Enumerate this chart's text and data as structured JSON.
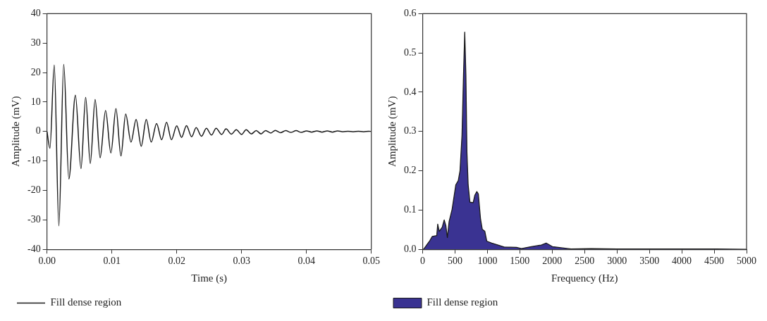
{
  "chart_data": [
    {
      "type": "line",
      "xlabel": "Time (s)",
      "ylabel": "Amplitude (mV)",
      "xlim": [
        0,
        0.05
      ],
      "xticks": [
        {
          "value": 0,
          "label": "0.00"
        },
        {
          "value": 0.01,
          "label": "0.01"
        },
        {
          "value": 0.02,
          "label": "0.02"
        },
        {
          "value": 0.03,
          "label": "0.03"
        },
        {
          "value": 0.04,
          "label": "0.04"
        },
        {
          "value": 0.05,
          "label": "0.05"
        }
      ],
      "ylim": [
        -40,
        40
      ],
      "yticks": [
        -40,
        -30,
        -20,
        -10,
        0,
        10,
        20,
        30,
        40
      ],
      "grid": false,
      "legend": "bottom left",
      "series": [
        {
          "name": "Fill dense region",
          "color": "#1a1a1a",
          "x": [
            0,
            0.00045,
            0.00112,
            0.00183,
            0.00258,
            0.00337,
            0.00438,
            0.00524,
            0.00596,
            0.00667,
            0.00742,
            0.00819,
            0.00903,
            0.00985,
            0.01063,
            0.0114,
            0.01213,
            0.01295,
            0.01374,
            0.01453,
            0.0153,
            0.01607,
            0.01689,
            0.01768,
            0.01843,
            0.01918,
            0.02,
            0.02075,
            0.0215,
            0.0223,
            0.023,
            0.02382,
            0.02457,
            0.02536,
            0.02607,
            0.02693,
            0.0276,
            0.02843,
            0.02918,
            0.03,
            0.0307,
            0.0315,
            0.03225,
            0.033,
            0.0337,
            0.0345,
            0.0352,
            0.036,
            0.0368,
            0.0376,
            0.0384,
            0.0392,
            0.04,
            0.0408,
            0.0416,
            0.0424,
            0.0432,
            0.044,
            0.0448,
            0.0456,
            0.0464,
            0.0472,
            0.048,
            0.0488,
            0.0496,
            0.05
          ],
          "values": [
            0,
            -5.7,
            22.6,
            -32,
            22.8,
            -16.1,
            12.3,
            -12.6,
            11.6,
            -10.9,
            10.9,
            -8.9,
            7.1,
            -7.3,
            7.8,
            -8.3,
            5.9,
            -3.6,
            4.1,
            -5.0,
            4.1,
            -3.6,
            2.7,
            -2.8,
            3.1,
            -2.8,
            1.9,
            -2.0,
            2.0,
            -1.8,
            1.3,
            -1.6,
            1.1,
            -1.2,
            1.1,
            -1.0,
            0.9,
            -0.9,
            0.6,
            -1.0,
            0.6,
            -0.8,
            0.3,
            -0.8,
            0.3,
            -0.5,
            0.4,
            -0.4,
            0.3,
            -0.3,
            0.3,
            -0.3,
            0.2,
            -0.2,
            0.2,
            -0.2,
            0.2,
            -0.2,
            0.2,
            -0.1,
            0.1,
            -0.1,
            0.1,
            -0.1,
            0.1,
            0
          ]
        }
      ]
    },
    {
      "type": "area",
      "xlabel": "Frequency (Hz)",
      "ylabel": "Amplitude (mV)",
      "xlim": [
        0,
        5000
      ],
      "xticks": [
        0,
        500,
        1000,
        1500,
        2000,
        2500,
        3000,
        3500,
        4000,
        4500,
        5000
      ],
      "ylim": [
        0,
        0.6
      ],
      "yticks": [
        {
          "value": 0,
          "label": "0.0"
        },
        {
          "value": 0.1,
          "label": "0.1"
        },
        {
          "value": 0.2,
          "label": "0.2"
        },
        {
          "value": 0.3,
          "label": "0.3"
        },
        {
          "value": 0.4,
          "label": "0.4"
        },
        {
          "value": 0.5,
          "label": "0.5"
        },
        {
          "value": 0.6,
          "label": "0.6"
        }
      ],
      "grid": false,
      "legend": "bottom left",
      "series": [
        {
          "name": "Fill dense region",
          "color": "#3a3392",
          "x": [
            0,
            15,
            111,
            149,
            218,
            233,
            256,
            302,
            333,
            359,
            382,
            409,
            455,
            512,
            550,
            577,
            608,
            631,
            650,
            668,
            684,
            703,
            730,
            780,
            806,
            837,
            860,
            894,
            921,
            960,
            990,
            1067,
            1181,
            1258,
            1449,
            1525,
            1678,
            1831,
            1907,
            2003,
            2136,
            2290,
            2600,
            3000,
            3500,
            4000,
            4500,
            5000
          ],
          "values": [
            0,
            0,
            0.022,
            0.033,
            0.035,
            0.064,
            0.046,
            0.056,
            0.075,
            0.06,
            0.03,
            0.071,
            0.102,
            0.164,
            0.175,
            0.2,
            0.291,
            0.444,
            0.553,
            0.444,
            0.248,
            0.164,
            0.12,
            0.119,
            0.138,
            0.147,
            0.141,
            0.077,
            0.051,
            0.046,
            0.021,
            0.016,
            0.01,
            0.006,
            0.005,
            0.002,
            0.007,
            0.011,
            0.016,
            0.007,
            0.004,
            0.001,
            0.002,
            0.001,
            0.001,
            0.001,
            0.001,
            0
          ]
        }
      ]
    }
  ]
}
